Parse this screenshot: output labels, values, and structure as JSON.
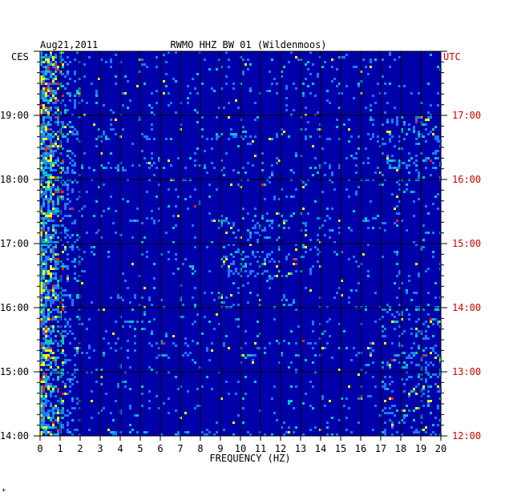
{
  "chart_data": {
    "type": "heatmap",
    "title": "RWMO HHZ BW 01 (Wildenmoos)",
    "date": "Aug21,2011",
    "left_axis_label": "CES",
    "right_axis_label": "UTC",
    "xlabel": "FREQUENCY (HZ)",
    "xlim": [
      0,
      20
    ],
    "x_ticks": [
      "0",
      "1",
      "2",
      "3",
      "4",
      "5",
      "6",
      "7",
      "8",
      "9",
      "10",
      "11",
      "12",
      "13",
      "14",
      "15",
      "16",
      "17",
      "18",
      "19",
      "20"
    ],
    "y_ticks_left": [
      "14:00",
      "15:00",
      "16:00",
      "17:00",
      "18:00",
      "19:00"
    ],
    "y_ticks_right": [
      "12:00",
      "13:00",
      "14:00",
      "15:00",
      "16:00",
      "17:00"
    ],
    "time_range_hours": [
      14.0,
      20.0
    ],
    "grid": true,
    "colors": {
      "background": "#0000aa",
      "grid": "#000000",
      "low": "#0000aa",
      "mid": "#1e78ff",
      "elevated": "#00c8c8",
      "high": "#ffff00",
      "peak": "#ff2000",
      "right_labels": "#cc0000"
    },
    "energy_bands": [
      {
        "freq_range_hz": [
          0,
          1.2
        ],
        "level": "high",
        "note": "strong low-frequency energy throughout"
      },
      {
        "freq_range_hz": [
          9,
          14
        ],
        "level": "elevated",
        "time": "16:30-17:30 CES"
      },
      {
        "freq_range_hz": [
          17,
          20
        ],
        "level": "elevated",
        "time": "14:00-16:00 and 18:00-19:00 CES"
      }
    ],
    "footnote": "*"
  }
}
